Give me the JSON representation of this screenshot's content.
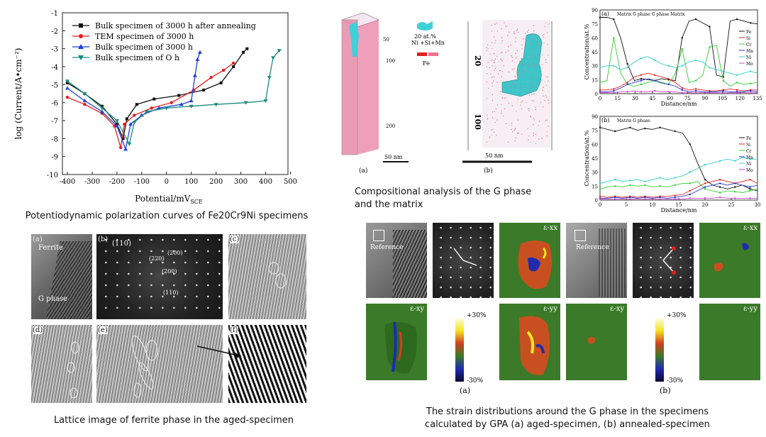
{
  "polarization": {
    "caption": "Potentiodynamic polarization curves of Fe20Cr9Ni specimens",
    "ylabel": "log (Current/A•cm⁻²)",
    "xlabel": "Potential/mV",
    "xlabel_sub": "SCE",
    "xticks": [
      "-400",
      "-300",
      "-200",
      "-100",
      "0",
      "100",
      "200",
      "300",
      "400",
      "500"
    ],
    "yticks": [
      "-1",
      "-2",
      "-3",
      "-4",
      "-5",
      "-6",
      "-7",
      "-8",
      "-9",
      "-10"
    ],
    "legend": [
      {
        "label": "Bulk specimen of 3000 h after annealing",
        "color": "#111111",
        "marker": "square"
      },
      {
        "label": "TEM specimen of 3000 h",
        "color": "#e02020",
        "marker": "circle"
      },
      {
        "label": "Bulk specimen of 3000 h",
        "color": "#1f3fd6",
        "marker": "triangle"
      },
      {
        "label": "Bulk specimen of O h",
        "color": "#1a8a80",
        "marker": "triangle-down"
      }
    ]
  },
  "atomprobe": {
    "caption_line1": "Compositional analysis of the G phase",
    "caption_line2": "and the matrix",
    "legend_top": "20 at.%",
    "legend_top2": "Ni +Si+Mn",
    "legend_bottom": "Fe",
    "scale_a": "50 nm",
    "scale_b": "50 nm",
    "label_a": "(a)",
    "label_b": "(b)",
    "tick_20": "20",
    "tick_100": "100"
  },
  "profiles": {
    "ylabel": "Concentration/at.%",
    "xlabel": "Distance/nm",
    "a": {
      "label": "(a)",
      "annot": "Matrix  G phase      G phase Matrix",
      "xticks": [
        "0",
        "15",
        "30",
        "45",
        "60",
        "75",
        "90",
        "105",
        "120",
        "135"
      ],
      "yticks": [
        "90",
        "75",
        "60",
        "45",
        "30",
        "15",
        "0"
      ],
      "legend": [
        "Fe",
        "Si",
        "Cr",
        "Mn",
        "Ni",
        "Mo"
      ]
    },
    "b": {
      "label": "(b)",
      "annot": "Matrix  G phase",
      "xticks": [
        "0",
        "5",
        "10",
        "15",
        "20",
        "25",
        "30"
      ],
      "yticks": [
        "90",
        "75",
        "60",
        "45",
        "30",
        "15",
        "0"
      ],
      "legend": [
        "Fe",
        "Si",
        "Cr",
        "Mn",
        "Ni",
        "Mo"
      ]
    },
    "colors": {
      "Fe": "#111111",
      "Si": "#e02020",
      "Cr": "#33cc33",
      "Mn": "#2233cc",
      "Ni": "#33cccc",
      "Mo": "#cc44cc"
    }
  },
  "lattice": {
    "caption": "Lattice image of ferrite phase in the aged-specimen",
    "a": "(a)",
    "b": "(b)",
    "c": "(c)",
    "d": "(d)",
    "e": "(e)",
    "f": "(f)",
    "ferrite": "Ferrite",
    "gphase": "G phase",
    "hkl_110": "(110)",
    "hkl_220": "(220)",
    "hkl_200": "(200)",
    "hkl_200b": "(200)",
    "hkl_110b": "(110)"
  },
  "strain": {
    "caption_line1": "The strain distributions around the G phase in the specimens",
    "caption_line2": "calculated by GPA (a) aged-specimen, (b) annealed-specimen",
    "reference_a": "Reference",
    "reference_b": "Reference",
    "exx": "ε-xx",
    "exy": "ε-xy",
    "eyy": "ε-yy",
    "scale_top": "+30%",
    "scale_bottom": "-30%",
    "label_a": "(a)",
    "label_b": "(b)"
  }
}
